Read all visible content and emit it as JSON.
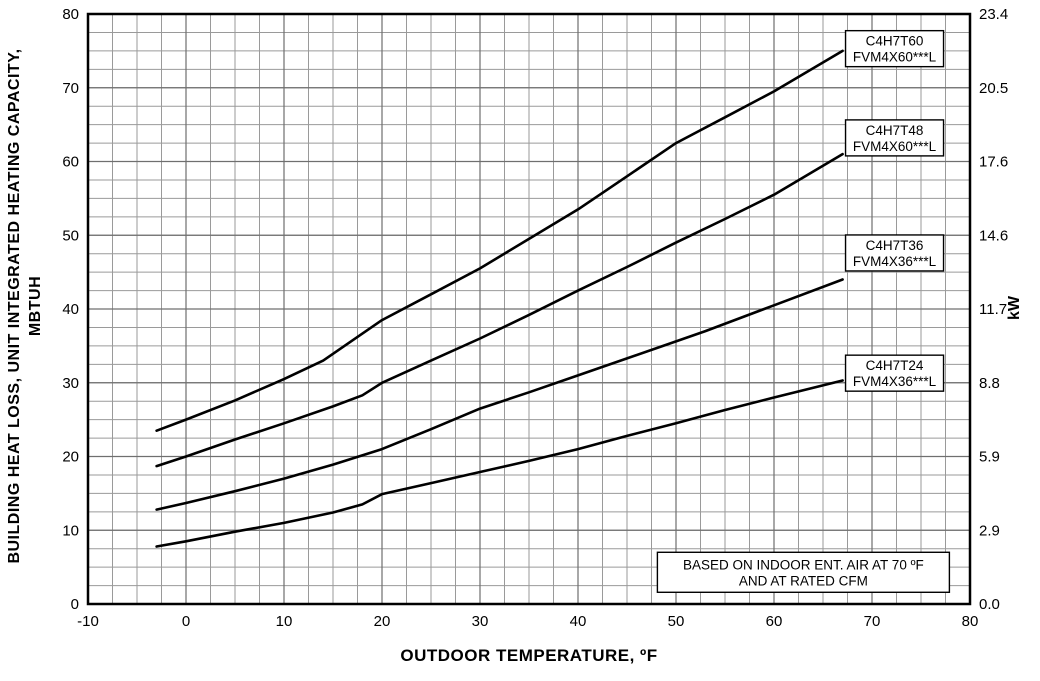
{
  "chart_data": {
    "type": "line",
    "title": "",
    "xlabel": "OUTDOOR TEMPERATURE, ºF",
    "ylabel_line1": "BUILDING HEAT LOSS, UNIT INTEGRATED HEATING CAPACITY,",
    "ylabel_line2": "MBTUH",
    "y2label": "kW",
    "xlim": [
      -10,
      80
    ],
    "ylim": [
      0,
      80
    ],
    "x_major_ticks": [
      -10,
      0,
      10,
      20,
      30,
      40,
      50,
      60,
      70,
      80
    ],
    "y_major_ticks": [
      0,
      10,
      20,
      30,
      40,
      50,
      60,
      70,
      80
    ],
    "y2_tick_labels": [
      "0.0",
      "2.9",
      "5.9",
      "8.8",
      "11.7",
      "14.6",
      "17.6",
      "20.5",
      "23.4"
    ],
    "minor_step_x": 2.5,
    "minor_step_y": 2.5,
    "grid": true,
    "legend_position": "inline-boxes-right",
    "colors": {
      "line": "#000000",
      "grid_minor": "#9a9a9a",
      "grid_major": "#6f6f6f",
      "border": "#000000",
      "box_fill": "#ffffff"
    },
    "series": [
      {
        "name": "C4H7T60",
        "label_line1": "C4H7T60",
        "label_line2": "FVM4X60***L",
        "label_center": {
          "x": 72.3,
          "y": 75.3
        },
        "points": [
          [
            -3,
            23.5
          ],
          [
            0,
            25
          ],
          [
            5,
            27.6
          ],
          [
            10,
            30.5
          ],
          [
            14,
            33
          ],
          [
            20,
            38.5
          ],
          [
            25,
            42
          ],
          [
            30,
            45.5
          ],
          [
            35,
            49.5
          ],
          [
            40,
            53.5
          ],
          [
            45,
            58
          ],
          [
            50,
            62.5
          ],
          [
            55,
            66
          ],
          [
            60,
            69.5
          ],
          [
            67,
            75
          ]
        ]
      },
      {
        "name": "C4H7T48",
        "label_line1": "C4H7T48",
        "label_line2": "FVM4X60***L",
        "label_center": {
          "x": 72.3,
          "y": 63.2
        },
        "points": [
          [
            -3,
            18.7
          ],
          [
            0,
            20
          ],
          [
            5,
            22.3
          ],
          [
            10,
            24.5
          ],
          [
            15,
            26.8
          ],
          [
            18,
            28.3
          ],
          [
            20,
            30
          ],
          [
            25,
            33
          ],
          [
            30,
            36
          ],
          [
            35,
            39.2
          ],
          [
            40,
            42.5
          ],
          [
            45,
            45.7
          ],
          [
            50,
            49
          ],
          [
            55,
            52.2
          ],
          [
            60,
            55.5
          ],
          [
            67,
            61
          ]
        ]
      },
      {
        "name": "C4H7T36",
        "label_line1": "C4H7T36",
        "label_line2": "FVM4X36***L",
        "label_center": {
          "x": 72.3,
          "y": 47.6
        },
        "points": [
          [
            -3,
            12.8
          ],
          [
            0,
            13.7
          ],
          [
            5,
            15.3
          ],
          [
            10,
            17
          ],
          [
            15,
            18.9
          ],
          [
            20,
            21
          ],
          [
            25,
            23.7
          ],
          [
            30,
            26.5
          ],
          [
            35,
            28.7
          ],
          [
            40,
            31
          ],
          [
            45,
            33.3
          ],
          [
            50,
            35.6
          ],
          [
            53,
            37
          ],
          [
            60,
            40.5
          ],
          [
            67,
            44
          ]
        ]
      },
      {
        "name": "C4H7T24",
        "label_line1": "C4H7T24",
        "label_line2": "FVM4X36***L",
        "label_center": {
          "x": 72.3,
          "y": 31.3
        },
        "points": [
          [
            -3,
            7.8
          ],
          [
            0,
            8.5
          ],
          [
            5,
            9.8
          ],
          [
            10,
            11
          ],
          [
            15,
            12.4
          ],
          [
            18,
            13.5
          ],
          [
            20,
            14.9
          ],
          [
            25,
            16.4
          ],
          [
            30,
            17.9
          ],
          [
            35,
            19.4
          ],
          [
            40,
            21
          ],
          [
            45,
            22.8
          ],
          [
            50,
            24.5
          ],
          [
            55,
            26.3
          ],
          [
            60,
            28
          ],
          [
            67,
            30.3
          ]
        ]
      }
    ],
    "annotation": {
      "line1": "BASED ON INDOOR ENT. AIR AT 70 ºF",
      "line2": "AND AT RATED CFM",
      "center": {
        "x": 63,
        "y": 4.3
      }
    }
  }
}
